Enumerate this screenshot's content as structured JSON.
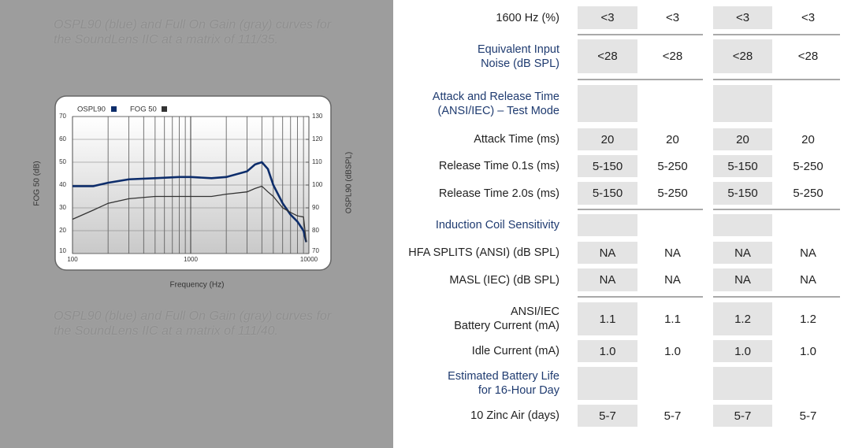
{
  "chart_data": {
    "type": "line",
    "xlabel": "Frequency (Hz)",
    "ylabel": "FOG 50 (dB)",
    "y2label": "OSPL90 (dBSPL)",
    "x": [
      100,
      150,
      200,
      300,
      500,
      800,
      1000,
      1500,
      2000,
      3000,
      3500,
      4000,
      4500,
      5000,
      6000,
      7000,
      8000,
      9000,
      9500
    ],
    "series": [
      {
        "name": "OSPL90",
        "color": "#0d2d6b",
        "axis": "y2",
        "values": [
          99.5,
          99.5,
          101,
          102.5,
          103,
          103.5,
          103.5,
          103,
          103.5,
          106,
          109,
          110,
          107,
          100,
          92,
          87,
          84,
          80,
          75
        ]
      },
      {
        "name": "FOG 50",
        "color": "#333333",
        "values": [
          25,
          29,
          32,
          34,
          35,
          35,
          35,
          35,
          36,
          37,
          38.5,
          39.5,
          37,
          35,
          30,
          28,
          26.5,
          26,
          15
        ]
      }
    ],
    "xlim": [
      100,
      10000
    ],
    "xticks": [
      100,
      1000,
      10000
    ],
    "xscale": "log",
    "ylim": [
      10,
      70
    ],
    "yticks": [
      10,
      20,
      30,
      40,
      50,
      60,
      70
    ],
    "y2lim": [
      70,
      130
    ],
    "y2ticks": [
      70,
      80,
      90,
      100,
      110,
      120,
      130
    ],
    "grid": true
  },
  "document": {
    "caption_top": "OSPL90 (blue) and Full On Gain (gray) curves for the SoundLens IIC at a matrix of 111/35.",
    "caption_bottom": "OSPL90 (blue) and Full On Gain (gray) curves for the SoundLens IIC at a matrix of 111/40.",
    "rows": [
      {
        "label": "1600 Hz (%)",
        "values": [
          "<3",
          "<3",
          "<3",
          "<3"
        ]
      },
      {
        "label": "Equivalent Input\nNoise (dB SPL)",
        "color": "#1f3b70",
        "values": [
          "<28",
          "<28",
          "<28",
          "<28"
        ]
      },
      {
        "label": "Attack and Release Time\n(ANSI/IEC) – Test Mode",
        "color": "#1f3b70",
        "values": []
      },
      {
        "label": "Attack Time (ms)",
        "values": [
          "20",
          "20",
          "20",
          "20"
        ]
      },
      {
        "label": "Release Time 0.1s (ms)",
        "values": [
          "5-150",
          "5-250",
          "5-150",
          "5-250"
        ]
      },
      {
        "label": "Release Time 2.0s (ms)",
        "values": [
          "5-150",
          "5-250",
          "5-150",
          "5-250"
        ]
      },
      {
        "label": "Induction Coil Sensitivity",
        "color": "#1f3b70",
        "values": []
      },
      {
        "label": "HFA SPLITS (ANSI) (dB SPL)",
        "values": [
          "NA",
          "NA",
          "NA",
          "NA"
        ]
      },
      {
        "label": "MASL (IEC) (dB SPL)",
        "values": [
          "NA",
          "NA",
          "NA",
          "NA"
        ]
      },
      {
        "label": "ANSI/IEC\nBattery Current (mA)",
        "values": [
          "1.1",
          "1.1",
          "1.2",
          "1.2"
        ]
      },
      {
        "label": "Idle Current (mA)",
        "values": [
          "1.0",
          "1.0",
          "1.0",
          "1.0"
        ]
      },
      {
        "label": "Estimated Battery Life\nfor 16-Hour Day",
        "color": "#1f3b70",
        "values": []
      },
      {
        "label": "10 Zinc Air (days)",
        "values": [
          "5-7",
          "5-7",
          "5-7",
          "5-7"
        ]
      }
    ]
  }
}
